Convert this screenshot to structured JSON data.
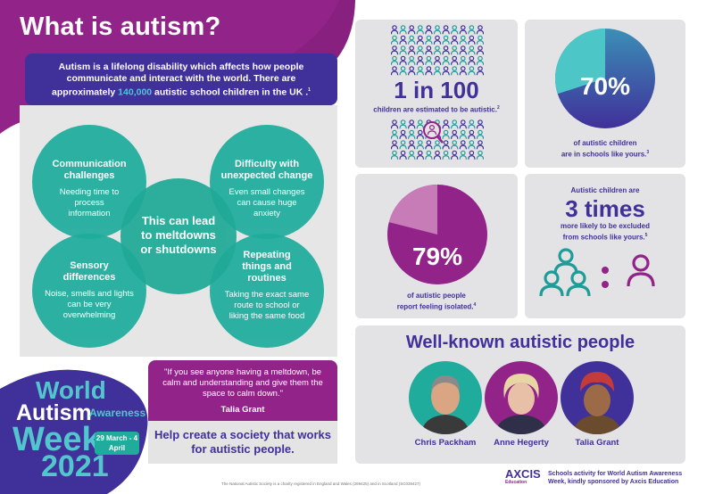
{
  "header": {
    "title": "What is autism?"
  },
  "intro": {
    "text_before": "Autism is a lifelong disability which affects how people communicate and interact with the world. There are approximately ",
    "highlight": "140,000",
    "text_after": " autistic school children in the UK .",
    "footnote": "1"
  },
  "circles": {
    "communication": {
      "title": "Communication challenges",
      "text": "Needing time to process information"
    },
    "change": {
      "title": "Difficulty with unexpected change",
      "text": "Even small changes can cause huge anxiety"
    },
    "center": {
      "text": "This can lead to meltdowns or shutdowns"
    },
    "sensory": {
      "title": "Sensory differences",
      "text": "Noise, smells and lights can be very overwhelming"
    },
    "routines": {
      "title": "Repeating things and routines",
      "text": "Taking the exact same route to school or liking the same food"
    }
  },
  "stats": {
    "one_in_100": {
      "big": "1 in 100",
      "caption": "children are estimated to be autistic.",
      "footnote": "2"
    },
    "seventy": {
      "value": 70,
      "label": "70%",
      "caption_line1": "of autistic children",
      "caption_line2": "are in schools like yours.",
      "footnote": "3"
    },
    "seventynine": {
      "value": 79,
      "label": "79%",
      "caption_line1": "of autistic people",
      "caption_line2": "report feeling isolated.",
      "footnote": "4"
    },
    "three_times": {
      "pre": "Autistic children are",
      "big": "3 times",
      "post_line1": "more likely to be excluded",
      "post_line2": "from schools like yours.",
      "footnote": "5"
    }
  },
  "famous": {
    "title": "Well-known autistic people",
    "people": [
      {
        "name": "Chris Packham"
      },
      {
        "name": "Anne Hegerty"
      },
      {
        "name": "Talia Grant"
      }
    ]
  },
  "quote": {
    "text": "\"If you see anyone having a meltdown, be calm and understanding and give them the space to calm down.\"",
    "author": "Talia Grant",
    "cta": "Help create a society that works for autistic people."
  },
  "event": {
    "line1": "World",
    "line2": "Autism",
    "line3": "Awareness",
    "line4": "Week",
    "year": "2021",
    "dates": "29 March - 4 April"
  },
  "footer": {
    "charity": "The National Autistic Society is a charity registered in England and Wales (269425) and in Scotland (SC039427)",
    "sponsor": "Schools activity for World Autism Awareness Week, kindly sponsored by Axcis Education",
    "logo_text": "AXCIS",
    "logo_sub": "Education"
  },
  "colors": {
    "purple": "#40309a",
    "magenta": "#922389",
    "teal": "#1fac9c",
    "light_teal": "#52c6cc",
    "grey": "#e3e3e5"
  }
}
